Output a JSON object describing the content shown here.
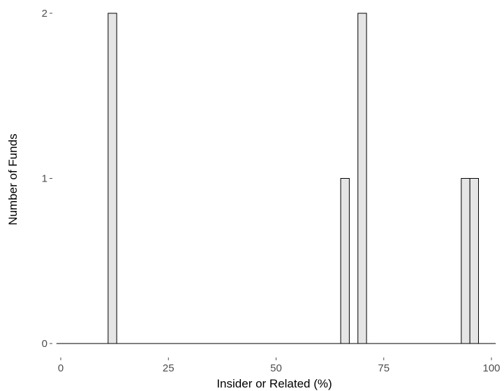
{
  "chart_data": {
    "type": "bar",
    "title": "",
    "xlabel": "Insider or Related (%)",
    "ylabel": "Number of Funds",
    "xlim": [
      -1,
      101
    ],
    "ylim": [
      0,
      2
    ],
    "x_ticks": [
      0,
      25,
      50,
      75,
      100
    ],
    "y_ticks": [
      0,
      1,
      2
    ],
    "x_tick_labels": [
      "0",
      "25",
      "50",
      "75",
      "100"
    ],
    "y_tick_labels": [
      "0",
      "1",
      "2"
    ],
    "bin_width": 2,
    "bins": [
      {
        "x_start": 11,
        "x_end": 13,
        "count": 2
      },
      {
        "x_start": 65,
        "x_end": 67,
        "count": 1
      },
      {
        "x_start": 69,
        "x_end": 71,
        "count": 2
      },
      {
        "x_start": 93,
        "x_end": 95,
        "count": 1
      },
      {
        "x_start": 95,
        "x_end": 97,
        "count": 1
      }
    ],
    "bar_fill": "#e5e5e5",
    "bar_stroke": "#000000",
    "grid": false,
    "legend": "none"
  }
}
